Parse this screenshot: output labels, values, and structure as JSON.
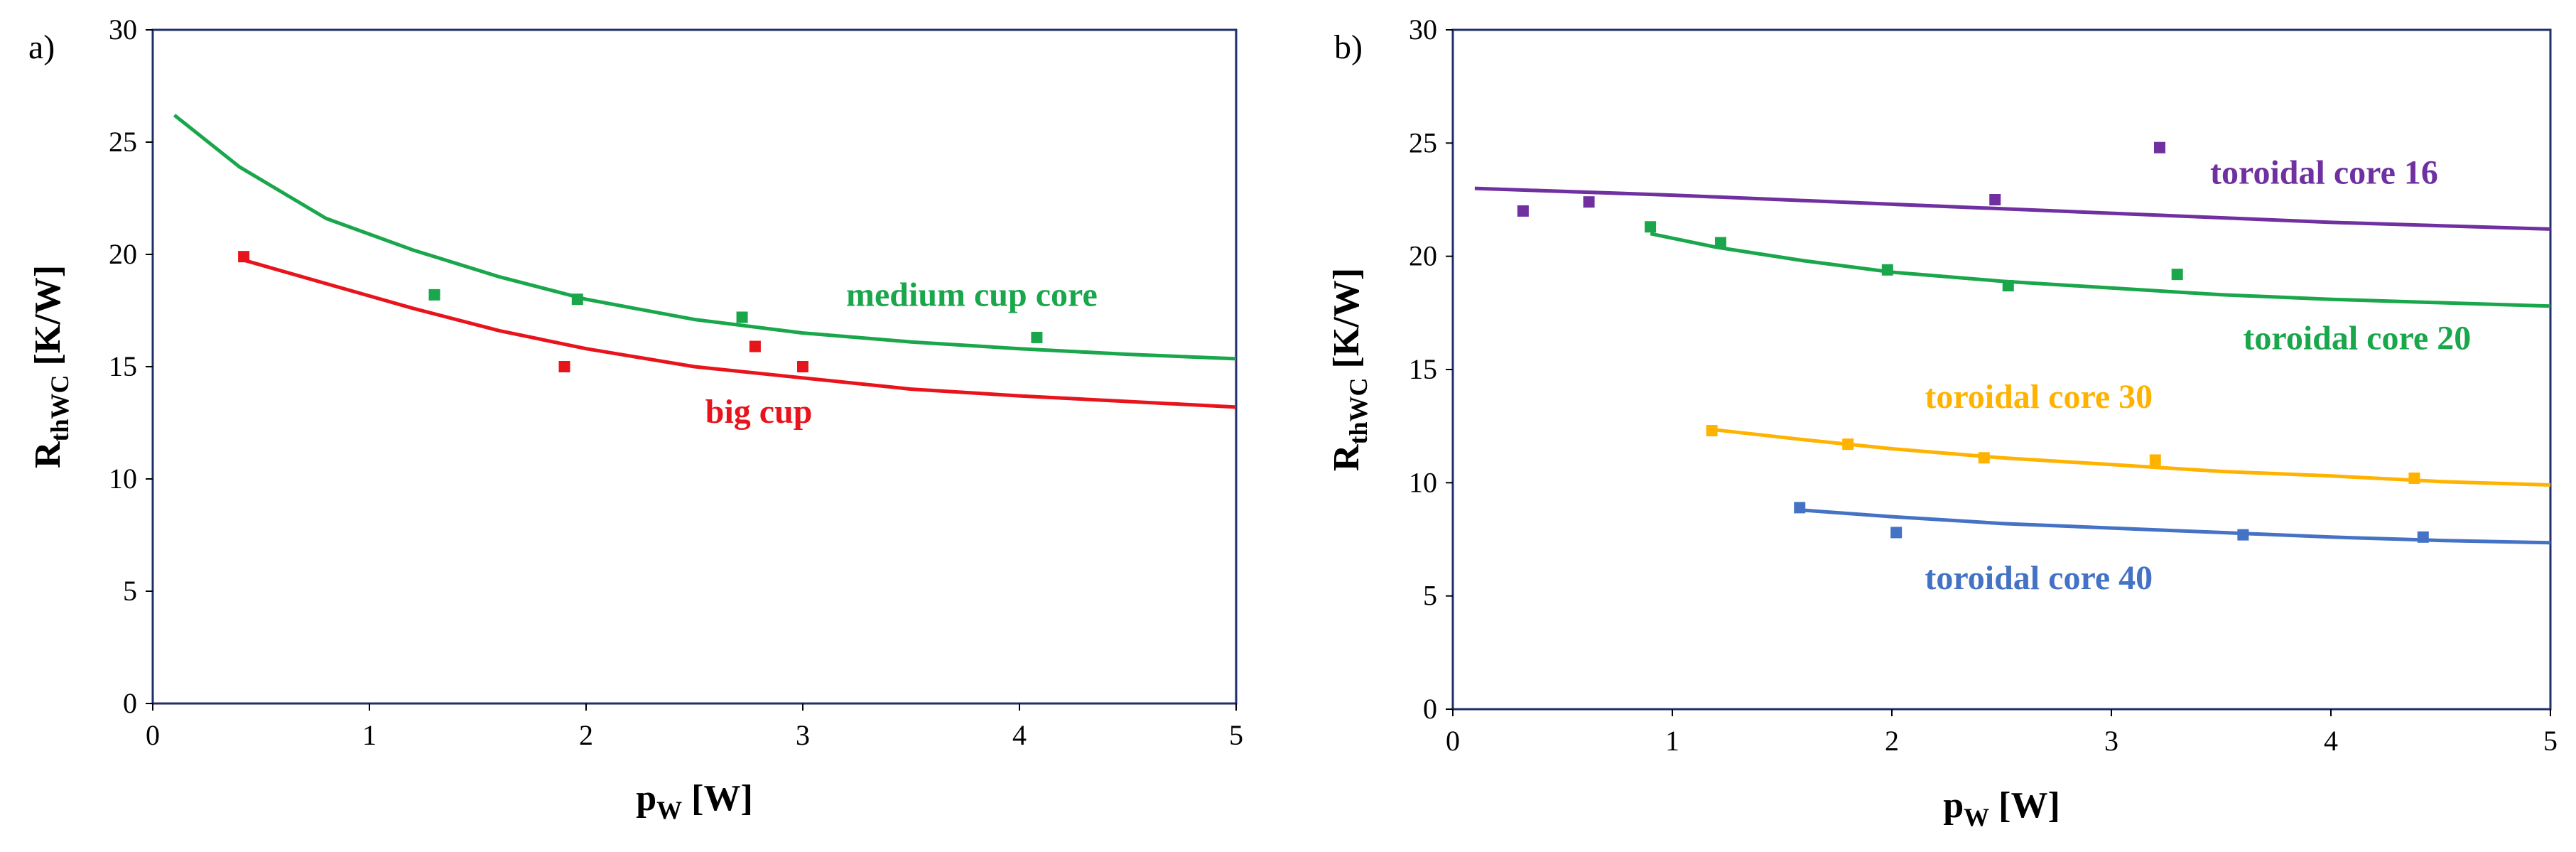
{
  "chart_data": [
    {
      "panel_label": "a)",
      "type": "scatter",
      "xlabel": {
        "main": "p",
        "sub": "W",
        "unit": " [W]"
      },
      "ylabel": {
        "main": "R",
        "sub": "thWC",
        "unit": " [K/W]"
      },
      "xlim": [
        0,
        5
      ],
      "ylim": [
        0,
        30
      ],
      "xticks": [
        0,
        1,
        2,
        3,
        4,
        5
      ],
      "yticks": [
        0,
        5,
        10,
        15,
        20,
        25,
        30
      ],
      "grid": false,
      "series": [
        {
          "name": "medium cup core",
          "color": "#1aa64b",
          "points": [
            [
              1.3,
              18.2
            ],
            [
              1.96,
              18.0
            ],
            [
              2.72,
              17.2
            ],
            [
              4.08,
              16.3
            ]
          ],
          "fit": [
            [
              0.1,
              26.2
            ],
            [
              0.4,
              23.9
            ],
            [
              0.8,
              21.6
            ],
            [
              1.2,
              20.2
            ],
            [
              1.6,
              19.0
            ],
            [
              2.0,
              18.0
            ],
            [
              2.5,
              17.1
            ],
            [
              3.0,
              16.5
            ],
            [
              3.5,
              16.1
            ],
            [
              4.0,
              15.8
            ],
            [
              4.5,
              15.55
            ],
            [
              5.0,
              15.35
            ]
          ],
          "label_at": [
            3.2,
            17.7
          ]
        },
        {
          "name": "big cup",
          "color": "#e8141c",
          "points": [
            [
              0.42,
              19.9
            ],
            [
              1.9,
              15.0
            ],
            [
              2.78,
              15.9
            ],
            [
              3.0,
              15.0
            ]
          ],
          "fit": [
            [
              0.4,
              19.8
            ],
            [
              0.8,
              18.7
            ],
            [
              1.2,
              17.6
            ],
            [
              1.6,
              16.6
            ],
            [
              2.0,
              15.8
            ],
            [
              2.5,
              15.0
            ],
            [
              3.0,
              14.5
            ],
            [
              3.5,
              14.0
            ],
            [
              4.0,
              13.7
            ],
            [
              4.5,
              13.45
            ],
            [
              5.0,
              13.2
            ]
          ],
          "label_at": [
            2.55,
            12.5
          ]
        }
      ]
    },
    {
      "panel_label": "b)",
      "type": "scatter",
      "xlabel": {
        "main": "p",
        "sub": "W",
        "unit": " [W]"
      },
      "ylabel": {
        "main": "R",
        "sub": "thWC",
        "unit": " [K/W]"
      },
      "xlim": [
        0,
        5
      ],
      "ylim": [
        0,
        30
      ],
      "xticks": [
        0,
        1,
        2,
        3,
        4,
        5
      ],
      "yticks": [
        0,
        5,
        10,
        15,
        20,
        25,
        30
      ],
      "grid": false,
      "series": [
        {
          "name": "toroidal core 16",
          "color": "#7030a0",
          "points": [
            [
              0.32,
              22.0
            ],
            [
              0.62,
              22.4
            ],
            [
              2.47,
              22.5
            ],
            [
              3.22,
              24.8
            ]
          ],
          "fit": [
            [
              0.1,
              23.0
            ],
            [
              1.0,
              22.7
            ],
            [
              2.0,
              22.3
            ],
            [
              3.0,
              21.9
            ],
            [
              4.0,
              21.5
            ],
            [
              5.0,
              21.2
            ]
          ],
          "label_at": [
            3.45,
            23.2
          ]
        },
        {
          "name": "toroidal core 20",
          "color": "#1aa64b",
          "points": [
            [
              0.9,
              21.3
            ],
            [
              1.22,
              20.6
            ],
            [
              1.98,
              19.4
            ],
            [
              2.53,
              18.7
            ],
            [
              3.3,
              19.2
            ]
          ],
          "fit": [
            [
              0.9,
              21.0
            ],
            [
              1.2,
              20.4
            ],
            [
              1.6,
              19.8
            ],
            [
              2.0,
              19.3
            ],
            [
              2.5,
              18.9
            ],
            [
              3.0,
              18.6
            ],
            [
              3.5,
              18.3
            ],
            [
              4.0,
              18.1
            ],
            [
              4.5,
              17.95
            ],
            [
              5.0,
              17.8
            ]
          ],
          "label_at": [
            3.6,
            15.9
          ]
        },
        {
          "name": "toroidal core 30",
          "color": "#ffb300",
          "points": [
            [
              1.18,
              12.3
            ],
            [
              1.8,
              11.7
            ],
            [
              2.42,
              11.1
            ],
            [
              3.2,
              11.0
            ],
            [
              4.38,
              10.2
            ]
          ],
          "fit": [
            [
              1.18,
              12.35
            ],
            [
              1.6,
              11.9
            ],
            [
              2.0,
              11.5
            ],
            [
              2.5,
              11.1
            ],
            [
              3.0,
              10.8
            ],
            [
              3.5,
              10.5
            ],
            [
              4.0,
              10.3
            ],
            [
              4.5,
              10.05
            ],
            [
              5.0,
              9.9
            ]
          ],
          "label_at": [
            2.15,
            13.3
          ]
        },
        {
          "name": "toroidal core 40",
          "color": "#4472c4",
          "points": [
            [
              1.58,
              8.9
            ],
            [
              2.02,
              7.8
            ],
            [
              3.6,
              7.7
            ],
            [
              4.42,
              7.6
            ]
          ],
          "fit": [
            [
              1.58,
              8.8
            ],
            [
              2.0,
              8.5
            ],
            [
              2.5,
              8.2
            ],
            [
              3.0,
              8.0
            ],
            [
              3.5,
              7.8
            ],
            [
              4.0,
              7.6
            ],
            [
              4.5,
              7.45
            ],
            [
              5.0,
              7.35
            ]
          ],
          "label_at": [
            2.15,
            5.3
          ]
        }
      ]
    }
  ]
}
